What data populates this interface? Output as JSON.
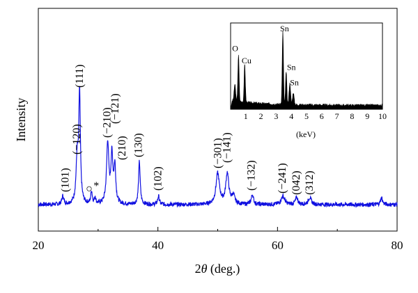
{
  "chart_data": [
    {
      "type": "line",
      "xlabel": "2θ (deg.)",
      "ylabel": "Intensity",
      "xlim": [
        20,
        80
      ],
      "xticks": [
        20,
        40,
        60,
        80
      ],
      "grid": false,
      "colors": {
        "series": "#1010e0"
      },
      "series": [
        {
          "baseline": 0.04,
          "noise": 0.015,
          "peaks": [
            {
              "pos": 24.1,
              "h": 0.06,
              "w": 0.18
            },
            {
              "pos": 26.5,
              "h": 0.32,
              "w": 0.22
            },
            {
              "pos": 26.9,
              "h": 0.78,
              "w": 0.16
            },
            {
              "pos": 28.9,
              "h": 0.09,
              "w": 0.15
            },
            {
              "pos": 29.5,
              "h": 0.05,
              "w": 0.12
            },
            {
              "pos": 31.6,
              "h": 0.44,
              "w": 0.22
            },
            {
              "pos": 32.3,
              "h": 0.34,
              "w": 0.2
            },
            {
              "pos": 32.8,
              "h": 0.26,
              "w": 0.18
            },
            {
              "pos": 36.9,
              "h": 0.31,
              "w": 0.16
            },
            {
              "pos": 40.1,
              "h": 0.06,
              "w": 0.17
            },
            {
              "pos": 50.0,
              "h": 0.22,
              "w": 0.35
            },
            {
              "pos": 51.6,
              "h": 0.22,
              "w": 0.3
            },
            {
              "pos": 52.6,
              "h": 0.06,
              "w": 0.3
            },
            {
              "pos": 55.8,
              "h": 0.07,
              "w": 0.22
            },
            {
              "pos": 60.9,
              "h": 0.06,
              "w": 0.35
            },
            {
              "pos": 63.2,
              "h": 0.05,
              "w": 0.25
            },
            {
              "pos": 65.4,
              "h": 0.05,
              "w": 0.3
            },
            {
              "pos": 77.4,
              "h": 0.05,
              "w": 0.2
            }
          ]
        }
      ],
      "annotations": [
        {
          "text": "(101)",
          "x": 24.5,
          "y": 0.13,
          "rotate": -90
        },
        {
          "text": "(−120)",
          "x": 26.4,
          "y": 0.4,
          "rotate": -90
        },
        {
          "text": "(111)",
          "x": 26.9,
          "y": 0.88,
          "rotate": -90
        },
        {
          "text": "○",
          "x": 28.5,
          "y": 0.13,
          "rotate": 0
        },
        {
          "text": "*",
          "x": 29.7,
          "y": 0.15,
          "rotate": 0
        },
        {
          "text": "(−210)",
          "x": 31.5,
          "y": 0.52,
          "rotate": -90
        },
        {
          "text": "(−121)",
          "x": 32.8,
          "y": 0.62,
          "rotate": -90
        },
        {
          "text": "(210)",
          "x": 34.0,
          "y": 0.36,
          "rotate": -90
        },
        {
          "text": "(130)",
          "x": 36.7,
          "y": 0.38,
          "rotate": -90
        },
        {
          "text": "(102)",
          "x": 40.0,
          "y": 0.14,
          "rotate": -90
        },
        {
          "text": "(−301)",
          "x": 50.0,
          "y": 0.3,
          "rotate": -90
        },
        {
          "text": "(−141)",
          "x": 51.5,
          "y": 0.34,
          "rotate": -90
        },
        {
          "text": "(−132)",
          "x": 55.6,
          "y": 0.14,
          "rotate": -90
        },
        {
          "text": "(−241)",
          "x": 60.8,
          "y": 0.12,
          "rotate": -90
        },
        {
          "text": "(042)",
          "x": 63.1,
          "y": 0.11,
          "rotate": -90
        },
        {
          "text": "(312)",
          "x": 65.3,
          "y": 0.11,
          "rotate": -90
        }
      ]
    },
    {
      "type": "bar",
      "inset": true,
      "xlabel": "(keV)",
      "xlim": [
        0,
        10
      ],
      "xticks": [
        1,
        2,
        3,
        4,
        5,
        6,
        7,
        8,
        9,
        10
      ],
      "colors": {
        "fill": "#000000"
      },
      "peaks": [
        {
          "pos": 0.28,
          "h": 0.22,
          "w": 0.05
        },
        {
          "pos": 0.52,
          "h": 0.62,
          "w": 0.04
        },
        {
          "pos": 0.93,
          "h": 0.5,
          "w": 0.04
        },
        {
          "pos": 3.44,
          "h": 0.97,
          "w": 0.04
        },
        {
          "pos": 3.66,
          "h": 0.44,
          "w": 0.04
        },
        {
          "pos": 3.9,
          "h": 0.28,
          "w": 0.05
        },
        {
          "pos": 4.13,
          "h": 0.16,
          "w": 0.05
        }
      ],
      "labels": [
        {
          "text": "O",
          "x": 0.3,
          "y": 0.74
        },
        {
          "text": "Cu",
          "x": 1.05,
          "y": 0.58
        },
        {
          "text": "Sn",
          "x": 3.55,
          "y": 1.0
        },
        {
          "text": "Sn",
          "x": 4.0,
          "y": 0.49
        },
        {
          "text": "Sn",
          "x": 4.2,
          "y": 0.29
        }
      ]
    }
  ]
}
